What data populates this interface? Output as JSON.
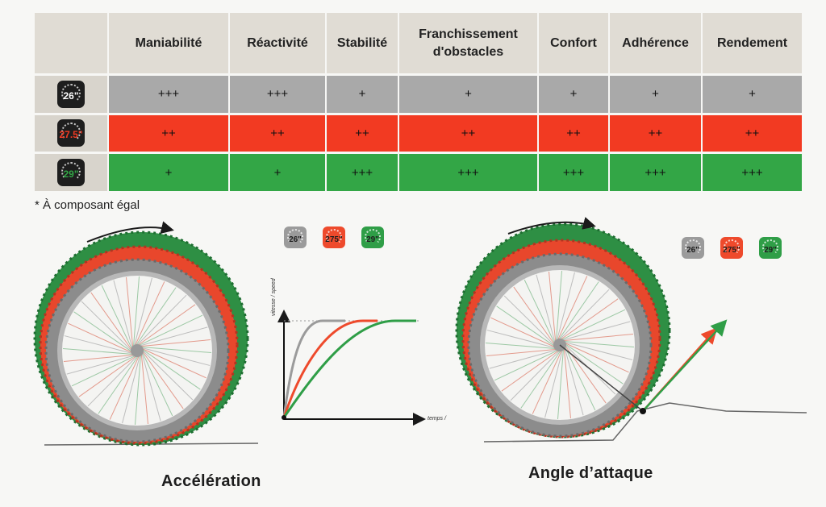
{
  "table": {
    "headers": [
      "Maniabilité",
      "Réactivité",
      "Stabilité",
      "Franchissement d'obstacles",
      "Confort",
      "Adhérence",
      "Rendement"
    ],
    "rows": [
      {
        "badge": "26\"",
        "color": "#a9a9a9",
        "badge_color": "#1e1e1e",
        "values": [
          "+++",
          "+++",
          "+",
          "+",
          "+",
          "+",
          "+"
        ]
      },
      {
        "badge": "27.5\"",
        "color": "#f23a22",
        "badge_color": "#1e1e1e",
        "values": [
          "++",
          "++",
          "++",
          "++",
          "++",
          "++",
          "++"
        ]
      },
      {
        "badge": "29\"",
        "color": "#33a646",
        "badge_color": "#1e1e1e",
        "values": [
          "+",
          "+",
          "+++",
          "+++",
          "+++",
          "+++",
          "+++"
        ]
      }
    ]
  },
  "footnote": "* À composant égal",
  "acceleration": {
    "caption": "Accélération",
    "y_label": "vitesse / speed",
    "x_label": "temps /",
    "legend": [
      {
        "label": "26\"",
        "color": "#9b9b9b"
      },
      {
        "label": "275\"",
        "color": "#ee4a2c"
      },
      {
        "label": "29\"",
        "color": "#2f9e47"
      }
    ]
  },
  "angle": {
    "caption": "Angle d’attaque",
    "legend": [
      {
        "label": "26\"",
        "color": "#9b9b9b"
      },
      {
        "label": "275\"",
        "color": "#ee4a2c"
      },
      {
        "label": "29\"",
        "color": "#2f9e47"
      }
    ]
  },
  "colors": {
    "grey": "#a9a9a9",
    "red": "#f23a22",
    "green": "#33a646"
  }
}
